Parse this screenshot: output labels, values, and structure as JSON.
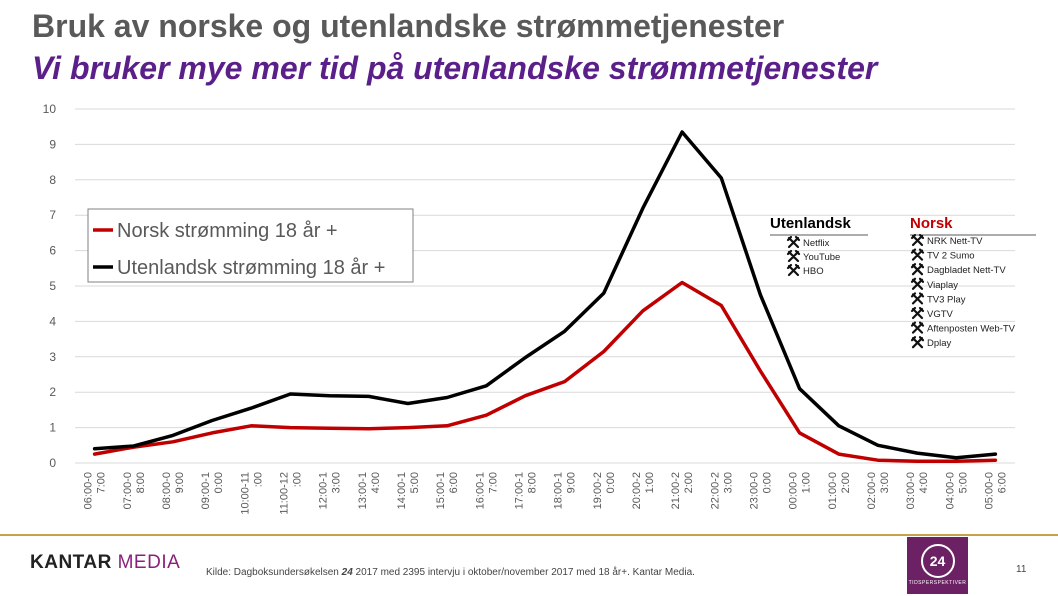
{
  "header": {
    "title": "Bruk av norske og utenlandske strømmetjenester",
    "subtitle": "Vi bruker mye mer tid på utenlandske strømmetjenester"
  },
  "chart_data": {
    "type": "line",
    "title": "",
    "xlabel": "",
    "ylabel": "",
    "ylim": [
      0,
      10
    ],
    "yticks": [
      0,
      1,
      2,
      3,
      4,
      5,
      6,
      7,
      8,
      9,
      10
    ],
    "grid": true,
    "legend_position": "top-left",
    "categories": [
      [
        "06:00-0",
        "7:00"
      ],
      [
        "07:00-0",
        "8:00"
      ],
      [
        "08:00-0",
        "9:00"
      ],
      [
        "09:00-1",
        "0:00"
      ],
      [
        "10:00-11",
        ":00"
      ],
      [
        "11:00-12",
        ":00"
      ],
      [
        "12:00-1",
        "3:00"
      ],
      [
        "13:00-1",
        "4:00"
      ],
      [
        "14:00-1",
        "5:00"
      ],
      [
        "15:00-1",
        "6:00"
      ],
      [
        "16:00-1",
        "7:00"
      ],
      [
        "17:00-1",
        "8:00"
      ],
      [
        "18:00-1",
        "9:00"
      ],
      [
        "19:00-2",
        "0:00"
      ],
      [
        "20:00-2",
        "1:00"
      ],
      [
        "21:00-2",
        "2:00"
      ],
      [
        "22:00-2",
        "3:00"
      ],
      [
        "23:00-0",
        "0:00"
      ],
      [
        "00:00-0",
        "1:00"
      ],
      [
        "01:00-0",
        "2:00"
      ],
      [
        "02:00-0",
        "3:00"
      ],
      [
        "03:00-0",
        "4:00"
      ],
      [
        "04:00-0",
        "5:00"
      ],
      [
        "05:00-0",
        "6:00"
      ]
    ],
    "series": [
      {
        "name": "Norsk strømming 18 år +",
        "color": "#c00000",
        "values": [
          0.25,
          0.45,
          0.6,
          0.85,
          1.05,
          1.0,
          0.98,
          0.97,
          1.0,
          1.05,
          1.35,
          1.9,
          2.3,
          3.15,
          4.3,
          5.1,
          4.45,
          2.6,
          0.85,
          0.25,
          0.08,
          0.05,
          0.05,
          0.08
        ]
      },
      {
        "name": "Utenlandsk strømming 18 år +",
        "color": "#000000",
        "values": [
          0.4,
          0.48,
          0.78,
          1.2,
          1.55,
          1.95,
          1.9,
          1.88,
          1.68,
          1.85,
          2.18,
          2.98,
          3.72,
          4.8,
          7.2,
          9.35,
          8.05,
          4.75,
          2.1,
          1.05,
          0.5,
          0.28,
          0.15,
          0.25
        ]
      }
    ],
    "annotations": {
      "foreign": {
        "heading": "Utenlandsk",
        "items": [
          "Netflix",
          "YouTube",
          "HBO"
        ]
      },
      "norwegian": {
        "heading": "Norsk",
        "items": [
          "NRK Nett-TV",
          "TV 2 Sumo",
          "Dagbladet Nett-TV",
          "Viaplay",
          "TV3 Play",
          "VGTV",
          "Aftenposten Web-TV",
          "Dplay"
        ]
      }
    }
  },
  "footer": {
    "logo_kantar": "KANTAR",
    "logo_media": "MEDIA",
    "source_pre": "Kilde: Dagboksundersøkelsen ",
    "source_bold": "24",
    "source_post": " 2017 med 2395 intervju i oktober/november 2017 med 18 år+. Kantar Media.",
    "badge_number": "24",
    "badge_caption": "TIDSPERSPEKTIVER",
    "page_number": "11"
  },
  "colors": {
    "title_gray": "#595959",
    "subtitle_purple": "#5b1f8a",
    "norsk_red": "#c00000",
    "badge_purple": "#6d2165",
    "footer_gold": "#c8a24a"
  }
}
